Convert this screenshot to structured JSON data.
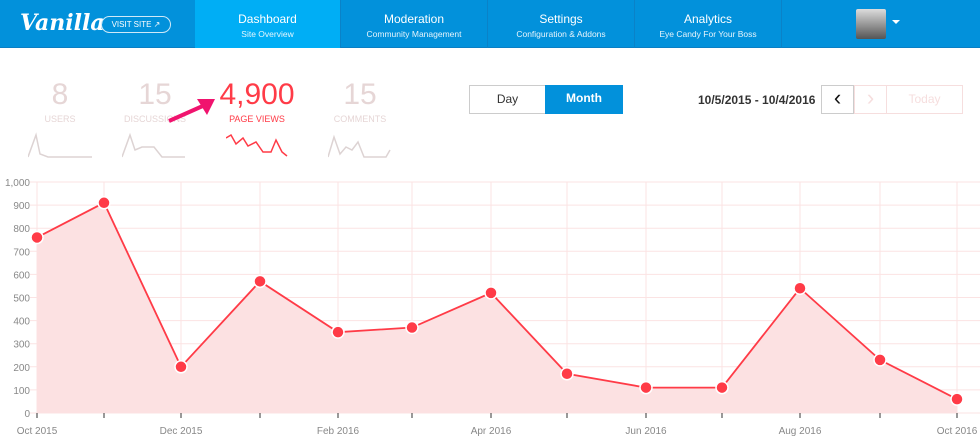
{
  "nav": {
    "logo": "Vanilla",
    "visit_site": "VISIT SITE ↗",
    "tabs": [
      {
        "title": "Dashboard",
        "subtitle": "Site Overview",
        "active": true
      },
      {
        "title": "Moderation",
        "subtitle": "Community Management"
      },
      {
        "title": "Settings",
        "subtitle": "Configuration & Addons"
      },
      {
        "title": "Analytics",
        "subtitle": "Eye Candy For Your Boss"
      }
    ],
    "colors": {
      "bar": "#0291db",
      "active": "#00aef5"
    }
  },
  "stats": [
    {
      "value": "8",
      "label": "USERS"
    },
    {
      "value": "15",
      "label": "DISCUSSIONS"
    },
    {
      "value": "4,900",
      "label": "PAGE VIEWS",
      "active": true
    },
    {
      "value": "15",
      "label": "COMMENTS"
    }
  ],
  "range": {
    "day": "Day",
    "month": "Month",
    "selected": "Month",
    "dates": "10/5/2015 - 10/4/2016",
    "prev": "‹",
    "next": "›",
    "today": "Today"
  },
  "chart_data": {
    "type": "area",
    "ylim": [
      0,
      1000
    ],
    "yticks": [
      "0",
      "100",
      "200",
      "300",
      "400",
      "500",
      "600",
      "700",
      "800",
      "900",
      "1,000"
    ],
    "xtick_labels": [
      "Oct 2015",
      "",
      "Dec 2015",
      "",
      "Feb 2016",
      "",
      "Apr 2016",
      "",
      "Jun 2016",
      "",
      "Aug 2016",
      "",
      "Oct 2016"
    ],
    "x": [
      "2015-10",
      "2015-11",
      "2015-12",
      "2016-01",
      "2016-02",
      "2016-03",
      "2016-04",
      "2016-05",
      "2016-06",
      "2016-07",
      "2016-08",
      "2016-09",
      "2016-10"
    ],
    "values": [
      760,
      910,
      200,
      570,
      350,
      370,
      520,
      170,
      110,
      110,
      540,
      230,
      60
    ],
    "grid": true,
    "color": "#ff3b47",
    "fill": "#fce1e2"
  }
}
